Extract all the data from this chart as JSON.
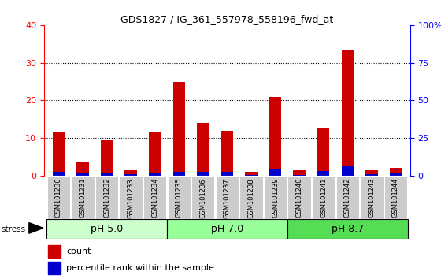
{
  "title": "GDS1827 / IG_361_557978_558196_fwd_at",
  "categories": [
    "GSM101230",
    "GSM101231",
    "GSM101232",
    "GSM101233",
    "GSM101234",
    "GSM101235",
    "GSM101236",
    "GSM101237",
    "GSM101238",
    "GSM101239",
    "GSM101240",
    "GSM101241",
    "GSM101242",
    "GSM101243",
    "GSM101244"
  ],
  "count_values": [
    11.5,
    3.5,
    9.5,
    1.5,
    11.5,
    25.0,
    14.0,
    12.0,
    1.0,
    21.0,
    1.5,
    12.5,
    33.5,
    1.5,
    2.0
  ],
  "percentile_values": [
    2.5,
    1.5,
    2.0,
    1.0,
    2.0,
    2.5,
    2.5,
    2.5,
    0.5,
    4.5,
    0.5,
    3.0,
    6.5,
    1.0,
    1.5
  ],
  "count_color": "#cc0000",
  "percentile_color": "#0000cc",
  "ylim_left": [
    0,
    40
  ],
  "ylim_right": [
    0,
    100
  ],
  "yticks_left": [
    0,
    10,
    20,
    30,
    40
  ],
  "yticks_right": [
    0,
    25,
    50,
    75,
    100
  ],
  "ytick_labels_right": [
    "0",
    "25",
    "50",
    "75",
    "100%"
  ],
  "groups": [
    {
      "label": "pH 5.0",
      "start": 0,
      "end": 5,
      "color": "#ccffcc"
    },
    {
      "label": "pH 7.0",
      "start": 5,
      "end": 10,
      "color": "#99ff99"
    },
    {
      "label": "pH 8.7",
      "start": 10,
      "end": 15,
      "color": "#55dd55"
    }
  ],
  "stress_label": "stress",
  "legend_count": "count",
  "legend_percentile": "percentile rank within the sample",
  "bar_width": 0.5,
  "background_color": "#ffffff",
  "tick_label_bg": "#cccccc"
}
